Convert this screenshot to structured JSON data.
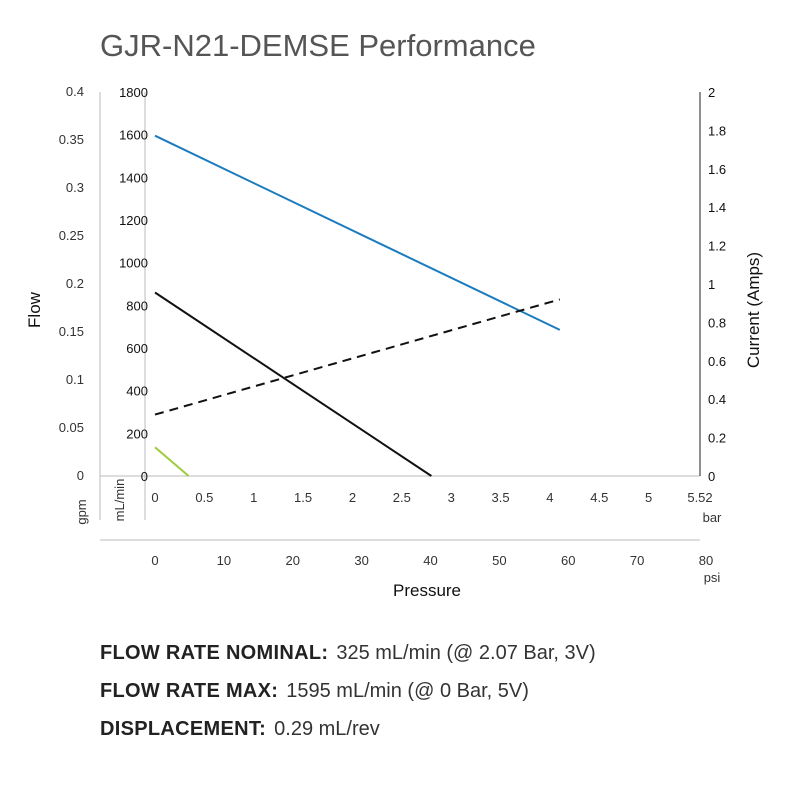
{
  "title": "GJR-N21-DEMSE Performance",
  "chart_data": {
    "type": "line",
    "title": "GJR-N21-DEMSE Performance",
    "ylabel": "Flow",
    "y2label": "Current (Amps)",
    "xlabel": "Pressure",
    "x_axes": [
      {
        "unit": "bar",
        "ticks": [
          "0",
          "0.5",
          "1",
          "1.5",
          "2",
          "2.5",
          "3",
          "3.5",
          "4",
          "4.5",
          "5",
          "5.52"
        ],
        "range": [
          0,
          5.52
        ]
      },
      {
        "unit": "psi",
        "ticks": [
          "0",
          "10",
          "20",
          "30",
          "40",
          "50",
          "60",
          "70",
          "80"
        ],
        "range": [
          0,
          80
        ]
      }
    ],
    "y_axes": [
      {
        "unit": "gpm",
        "ticks": [
          "0",
          "0.05",
          "0.1",
          "0.15",
          "0.2",
          "0.25",
          "0.3",
          "0.35",
          "0.4"
        ],
        "range": [
          0,
          0.4
        ]
      },
      {
        "unit": "mL/min",
        "ticks": [
          "0",
          "200",
          "400",
          "600",
          "800",
          "1000",
          "1200",
          "1400",
          "1600",
          "1800"
        ],
        "range": [
          0,
          1800
        ]
      },
      {
        "unit": "",
        "ticks": [
          "0",
          "0.2",
          "0.4",
          "0.6",
          "0.8",
          "1",
          "1.2",
          "1.4",
          "1.6",
          "1.8",
          "2"
        ],
        "range": [
          0,
          2
        ]
      }
    ],
    "x_unit": "bar",
    "series": [
      {
        "axis": "left",
        "style": "solid",
        "color": "#1a7bbf",
        "x": [
          0,
          4.1
        ],
        "y": [
          1595,
          685
        ]
      },
      {
        "axis": "left",
        "style": "solid",
        "color": "#111111",
        "x": [
          0,
          2.8
        ],
        "y": [
          860,
          0
        ]
      },
      {
        "axis": "left",
        "style": "solid",
        "color": "#9ccc3c",
        "x": [
          0,
          0.34
        ],
        "y": [
          135,
          0
        ]
      },
      {
        "axis": "right",
        "style": "dashed",
        "color": "#111111",
        "x": [
          0,
          4.1
        ],
        "y": [
          0.32,
          0.92
        ]
      }
    ],
    "grid": false
  },
  "specs": [
    {
      "label": "FLOW RATE NOMINAL:",
      "value": "325 mL/min (@ 2.07 Bar, 3V)"
    },
    {
      "label": "FLOW RATE MAX:",
      "value": "1595 mL/min (@ 0 Bar, 5V)"
    },
    {
      "label": "DISPLACEMENT:",
      "value": "0.29 mL/rev"
    }
  ]
}
